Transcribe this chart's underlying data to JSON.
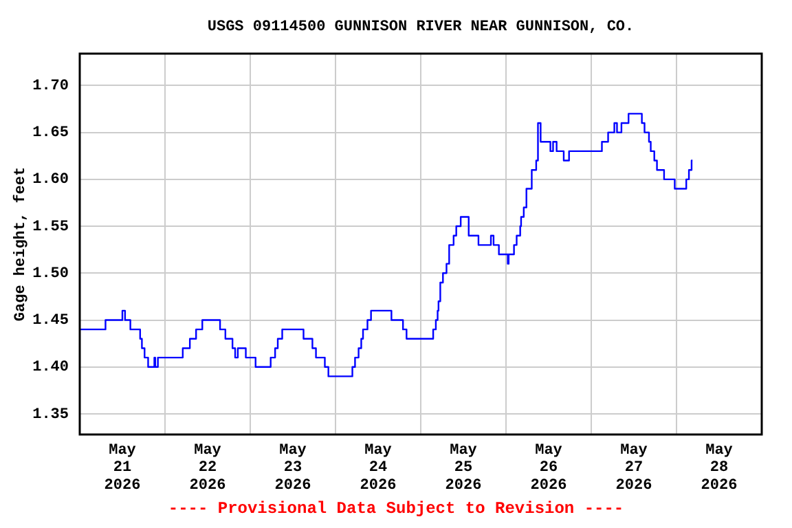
{
  "chart_data": {
    "type": "line",
    "title": "USGS 09114500 GUNNISON RIVER NEAR GUNNISON, CO.",
    "ylabel": "Gage height, feet",
    "annotations": [
      "---- Provisional Data Subject to Revision ----"
    ],
    "xlim": [
      "2026-05-21T00:00",
      "2026-05-29T00:00"
    ],
    "xticks": [
      {
        "value": "2026-05-21T12:00",
        "label": "May 21 2026"
      },
      {
        "value": "2026-05-22T00:00",
        "label": null
      },
      {
        "value": "2026-05-22T12:00",
        "label": "May 22 2026"
      },
      {
        "value": "2026-05-23T00:00",
        "label": null
      },
      {
        "value": "2026-05-23T12:00",
        "label": "May 23 2026"
      },
      {
        "value": "2026-05-24T00:00",
        "label": null
      },
      {
        "value": "2026-05-24T12:00",
        "label": "May 24 2026"
      },
      {
        "value": "2026-05-25T00:00",
        "label": null
      },
      {
        "value": "2026-05-25T12:00",
        "label": "May 25 2026"
      },
      {
        "value": "2026-05-26T00:00",
        "label": null
      },
      {
        "value": "2026-05-26T12:00",
        "label": "May 26 2026"
      },
      {
        "value": "2026-05-27T00:00",
        "label": null
      },
      {
        "value": "2026-05-27T12:00",
        "label": "May 27 2026"
      },
      {
        "value": "2026-05-28T00:00",
        "label": null
      },
      {
        "value": "2026-05-28T12:00",
        "label": "May 28 2026"
      }
    ],
    "ylim": [
      1.328,
      1.734
    ],
    "yticks": [
      {
        "value": 1.35,
        "label": "1.35"
      },
      {
        "value": 1.4,
        "label": "1.40"
      },
      {
        "value": 1.45,
        "label": "1.45"
      },
      {
        "value": 1.5,
        "label": "1.50"
      },
      {
        "value": 1.55,
        "label": "1.55"
      },
      {
        "value": 1.6,
        "label": "1.60"
      },
      {
        "value": 1.65,
        "label": "1.65"
      },
      {
        "value": 1.7,
        "label": "1.70"
      }
    ],
    "grid": true,
    "legend": false,
    "series": [
      {
        "type": "step",
        "color": "#0000ff",
        "x": [
          "2026-05-21T00:00",
          "2026-05-21T07:15",
          "2026-05-21T12:00",
          "2026-05-21T12:45",
          "2026-05-21T14:15",
          "2026-05-21T17:00",
          "2026-05-21T17:30",
          "2026-05-21T18:15",
          "2026-05-21T19:15",
          "2026-05-21T21:00",
          "2026-05-21T21:15",
          "2026-05-21T22:00",
          "2026-05-22T05:00",
          "2026-05-22T07:00",
          "2026-05-22T08:45",
          "2026-05-22T10:30",
          "2026-05-22T15:30",
          "2026-05-22T17:00",
          "2026-05-22T19:00",
          "2026-05-22T19:45",
          "2026-05-22T20:30",
          "2026-05-22T22:45",
          "2026-05-23T01:30",
          "2026-05-23T05:45",
          "2026-05-23T07:00",
          "2026-05-23T07:45",
          "2026-05-23T09:00",
          "2026-05-23T15:00",
          "2026-05-23T17:30",
          "2026-05-23T18:30",
          "2026-05-23T21:00",
          "2026-05-23T22:00",
          "2026-05-24T04:45",
          "2026-05-24T05:30",
          "2026-05-24T06:30",
          "2026-05-24T07:15",
          "2026-05-24T07:45",
          "2026-05-24T09:00",
          "2026-05-24T10:00",
          "2026-05-24T15:45",
          "2026-05-24T19:00",
          "2026-05-24T20:00",
          "2026-05-25T03:30",
          "2026-05-25T04:15",
          "2026-05-25T04:45",
          "2026-05-25T05:00",
          "2026-05-25T05:30",
          "2026-05-25T06:15",
          "2026-05-25T07:15",
          "2026-05-25T08:00",
          "2026-05-25T09:15",
          "2026-05-25T10:00",
          "2026-05-25T11:15",
          "2026-05-25T13:30",
          "2026-05-25T16:15",
          "2026-05-25T19:45",
          "2026-05-25T20:30",
          "2026-05-25T22:00",
          "2026-05-26T00:30",
          "2026-05-26T00:45",
          "2026-05-26T02:15",
          "2026-05-26T03:00",
          "2026-05-26T04:00",
          "2026-05-26T04:15",
          "2026-05-26T05:00",
          "2026-05-26T05:45",
          "2026-05-26T07:15",
          "2026-05-26T08:30",
          "2026-05-26T09:00",
          "2026-05-26T09:45",
          "2026-05-26T12:30",
          "2026-05-26T13:15",
          "2026-05-26T14:15",
          "2026-05-26T16:15",
          "2026-05-26T17:45",
          "2026-05-27T03:00",
          "2026-05-27T04:45",
          "2026-05-27T06:30",
          "2026-05-27T07:15",
          "2026-05-27T08:30",
          "2026-05-27T10:30",
          "2026-05-27T14:15",
          "2026-05-27T15:00",
          "2026-05-27T16:15",
          "2026-05-27T16:45",
          "2026-05-27T17:45",
          "2026-05-27T18:30",
          "2026-05-27T20:30",
          "2026-05-27T23:30",
          "2026-05-28T02:45",
          "2026-05-28T03:30",
          "2026-05-28T04:15",
          "2026-05-28T04:30"
        ],
        "values": [
          1.44,
          1.45,
          1.46,
          1.45,
          1.44,
          1.43,
          1.42,
          1.41,
          1.4,
          1.41,
          1.4,
          1.41,
          1.42,
          1.43,
          1.44,
          1.45,
          1.44,
          1.43,
          1.42,
          1.41,
          1.42,
          1.41,
          1.4,
          1.41,
          1.42,
          1.43,
          1.44,
          1.43,
          1.42,
          1.41,
          1.4,
          1.39,
          1.4,
          1.41,
          1.42,
          1.43,
          1.44,
          1.45,
          1.46,
          1.45,
          1.44,
          1.43,
          1.44,
          1.45,
          1.46,
          1.47,
          1.49,
          1.5,
          1.51,
          1.53,
          1.54,
          1.55,
          1.56,
          1.54,
          1.53,
          1.54,
          1.53,
          1.52,
          1.51,
          1.52,
          1.53,
          1.54,
          1.55,
          1.56,
          1.57,
          1.59,
          1.61,
          1.62,
          1.66,
          1.64,
          1.63,
          1.64,
          1.63,
          1.62,
          1.63,
          1.64,
          1.65,
          1.66,
          1.65,
          1.66,
          1.67,
          1.66,
          1.65,
          1.64,
          1.63,
          1.62,
          1.61,
          1.6,
          1.59,
          1.6,
          1.61,
          1.62,
          1.62
        ]
      }
    ]
  }
}
